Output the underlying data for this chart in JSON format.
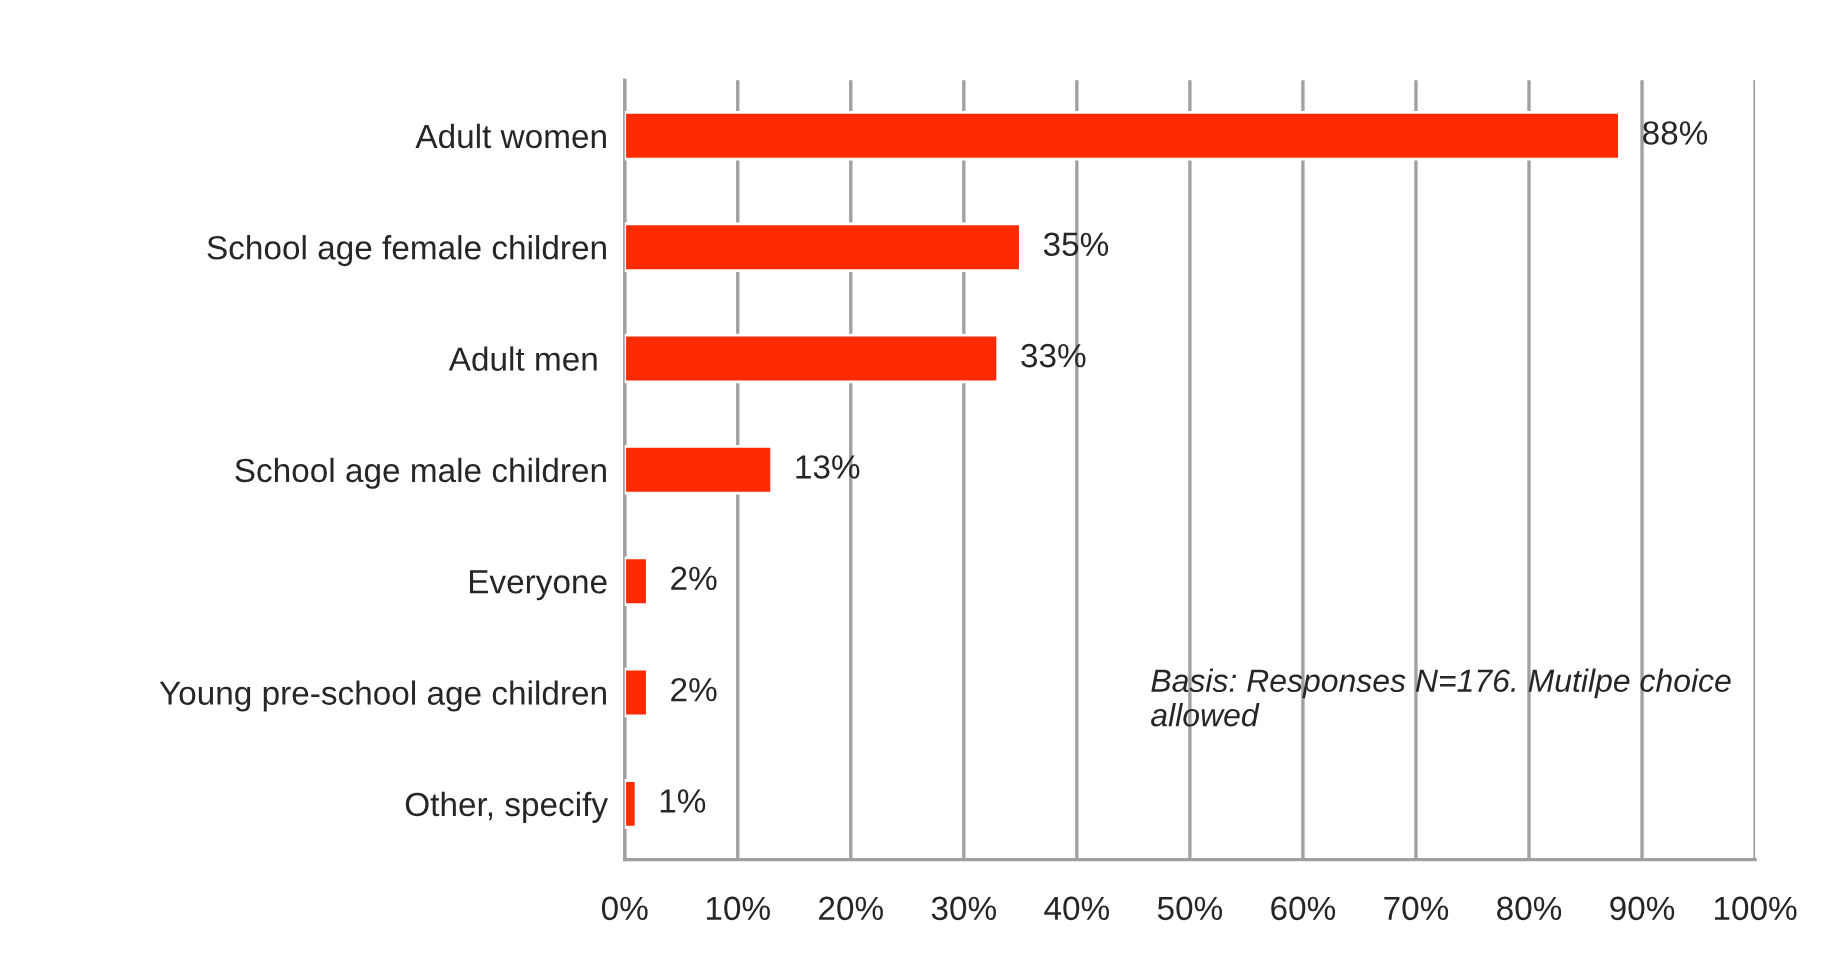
{
  "chart_data": {
    "type": "bar",
    "orientation": "horizontal",
    "categories": [
      "Adult women",
      "School age female children",
      "Adult men ",
      "School age male children",
      "Everyone",
      "Young pre-school age children",
      "Other, specify"
    ],
    "values": [
      88,
      35,
      33,
      13,
      2,
      2,
      1
    ],
    "value_labels": [
      "88%",
      "35%",
      "33%",
      "13%",
      "2%",
      "2%",
      "1%"
    ],
    "color": "#ff2a00",
    "xlim": [
      0,
      100
    ],
    "xticks": [
      {
        "value": 0,
        "label": "0%"
      },
      {
        "value": 10,
        "label": "10%"
      },
      {
        "value": 20,
        "label": "20%"
      },
      {
        "value": 30,
        "label": "30%"
      },
      {
        "value": 40,
        "label": "40%"
      },
      {
        "value": 50,
        "label": "50%"
      },
      {
        "value": 60,
        "label": "60%"
      },
      {
        "value": 70,
        "label": "70%"
      },
      {
        "value": 80,
        "label": "80%"
      },
      {
        "value": 90,
        "label": "90%"
      },
      {
        "value": 100,
        "label": "100%"
      }
    ],
    "grid": "x",
    "legend": false,
    "annotations": [
      "Basis: Responses N=176. Mutilpe choice allowed"
    ]
  }
}
